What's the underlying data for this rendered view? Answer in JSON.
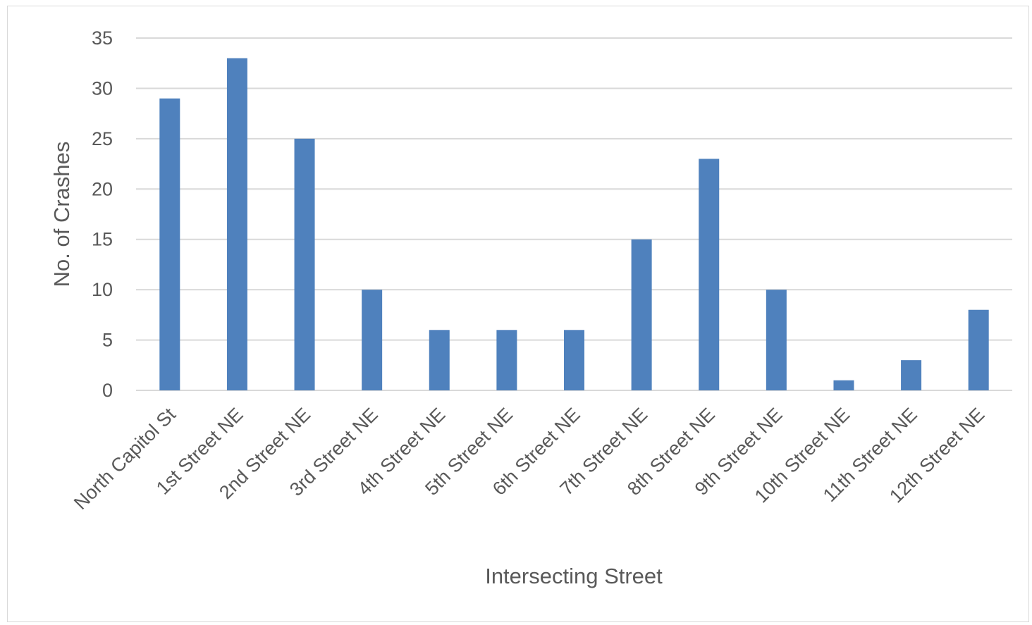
{
  "chart_data": {
    "type": "bar",
    "title": "",
    "xlabel": "Intersecting Street",
    "ylabel": "No. of Crashes",
    "categories": [
      "North Capitol St",
      "1st Street NE",
      "2nd Street NE",
      "3rd Street NE",
      "4th Street NE",
      "5th Street NE",
      "6th Street NE",
      "7th Street NE",
      "8th Street NE",
      "9th Street NE",
      "10th Street NE",
      "11th Street NE",
      "12th Street NE"
    ],
    "values": [
      29,
      33,
      25,
      10,
      6,
      6,
      6,
      15,
      23,
      10,
      1,
      3,
      8
    ],
    "ylim": [
      0,
      35
    ],
    "yticks": [
      0,
      5,
      10,
      15,
      20,
      25,
      30,
      35
    ],
    "grid": true,
    "legend": "none",
    "colors": {
      "bar": "#4f81bd",
      "grid": "#d9d9d9",
      "text": "#595959"
    }
  }
}
